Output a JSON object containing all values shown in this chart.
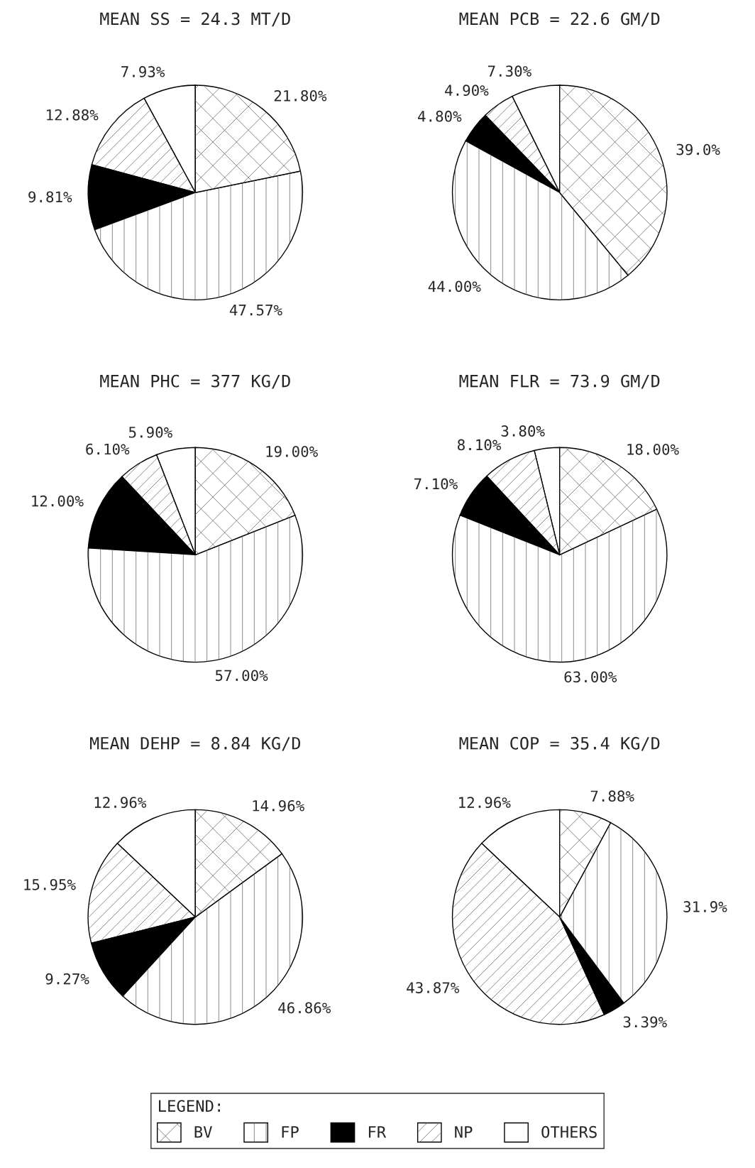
{
  "chart_data": [
    {
      "type": "pie",
      "title": "MEAN SS = 24.3 MT/D",
      "categories": [
        "OTHERS",
        "NP",
        "FR",
        "FP",
        "BV"
      ],
      "values": [
        7.93,
        12.88,
        9.81,
        47.57,
        21.8
      ],
      "value_labels": [
        "7.93%",
        "12.88%",
        "9.81%",
        "47.57%",
        "21.80%"
      ],
      "colors": [
        "#ffffff",
        "#ffffff",
        "#000000",
        "#ffffff",
        "#ffffff"
      ],
      "legend": "bottom",
      "legend_title": "LEGEND:"
    },
    {
      "type": "pie",
      "title": "MEAN PCB = 22.6 GM/D",
      "values": [
        7.3,
        4.9,
        4.8,
        44.0,
        39.0
      ],
      "value_labels": [
        "7.30%",
        "4.90%",
        "4.80%",
        "44.00%",
        "39.0%"
      ],
      "colors": [
        "#ffffff",
        "#ffffff",
        "#000000",
        "#ffffff",
        "#ffffff"
      ]
    },
    {
      "type": "pie",
      "title": "MEAN PHC = 377 KG/D",
      "values": [
        5.9,
        6.1,
        12.0,
        57.0,
        19.0
      ],
      "value_labels": [
        "5.90%",
        "6.10%",
        "12.00%",
        "57.00%",
        "19.00%"
      ],
      "colors": [
        "#ffffff",
        "#ffffff",
        "#000000",
        "#ffffff",
        "#ffffff"
      ]
    },
    {
      "type": "pie",
      "title": "MEAN FLR = 73.9 GM/D",
      "values": [
        3.8,
        8.1,
        7.1,
        63.0,
        18.0
      ],
      "value_labels": [
        "3.80%",
        "8.10%",
        "7.10%",
        "63.00%",
        "18.00%"
      ],
      "colors": [
        "#ffffff",
        "#ffffff",
        "#000000",
        "#ffffff",
        "#ffffff"
      ]
    },
    {
      "type": "pie",
      "title": "MEAN DEHP = 8.84 KG/D",
      "values": [
        12.96,
        15.95,
        9.27,
        46.86,
        14.96
      ],
      "value_labels": [
        "12.96%",
        "15.95%",
        "9.27%",
        "46.86%",
        "14.96%"
      ],
      "colors": [
        "#ffffff",
        "#ffffff",
        "#000000",
        "#ffffff",
        "#ffffff"
      ]
    },
    {
      "type": "pie",
      "title": "MEAN COP = 35.4 KG/D",
      "values": [
        12.96,
        43.87,
        3.39,
        31.9,
        7.88
      ],
      "value_labels": [
        "12.96%",
        "43.87%",
        "3.39%",
        "31.9%",
        "7.88%"
      ],
      "colors": [
        "#ffffff",
        "#ffffff",
        "#000000",
        "#ffffff",
        "#ffffff"
      ]
    }
  ]
}
